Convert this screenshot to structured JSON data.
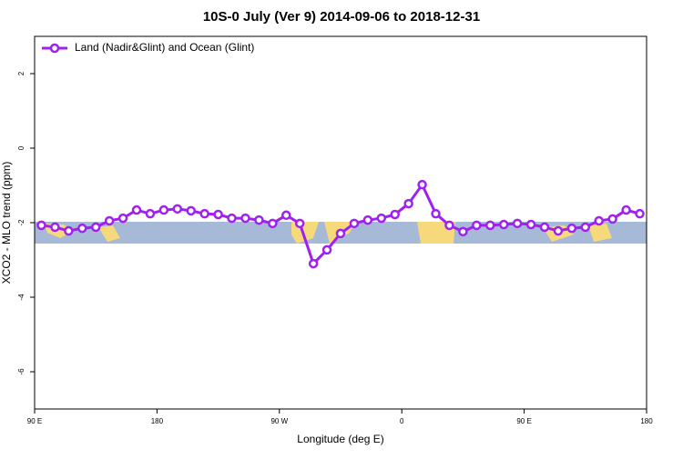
{
  "chart_data": {
    "type": "line",
    "title": "10S-0 July (Ver 9)   2014-09-06 to 2018-12-31",
    "x_label": "Longitude (deg E)",
    "y_label": "XCO2 - MLO trend (ppm)",
    "x": [
      95,
      105,
      115,
      125,
      135,
      145,
      155,
      165,
      175,
      185,
      195,
      205,
      215,
      225,
      235,
      245,
      255,
      265,
      275,
      285,
      295,
      305,
      315,
      325,
      335,
      345,
      355,
      365,
      375,
      385,
      395,
      405,
      415,
      425,
      435,
      445,
      455,
      465,
      475,
      485,
      495,
      505,
      515,
      525,
      535
    ],
    "series": [
      {
        "name": "Land (Nadir&Glint) and Ocean (Glint)",
        "color": "#a020f0",
        "values": [
          -2.07,
          -2.12,
          -2.22,
          -2.15,
          -2.12,
          -1.95,
          -1.88,
          -1.66,
          -1.76,
          -1.66,
          -1.63,
          -1.68,
          -1.76,
          -1.78,
          -1.88,
          -1.88,
          -1.93,
          -2.02,
          -1.8,
          -2.02,
          -3.1,
          -2.73,
          -2.29,
          -2.02,
          -1.93,
          -1.88,
          -1.78,
          -1.49,
          -0.98,
          -1.76,
          -2.07,
          -2.24,
          -2.07,
          -2.07,
          -2.05,
          -2.02,
          -2.05,
          -2.12,
          -2.22,
          -2.15,
          -2.12,
          -1.95,
          -1.9,
          -1.66,
          -1.76
        ]
      }
    ],
    "xlim": [
      90,
      540
    ],
    "xticks": [
      {
        "value": 90,
        "label": "90 E"
      },
      180,
      {
        "value": 270,
        "label": "90 W"
      },
      {
        "value": 360,
        "label": "0"
      },
      {
        "value": 450,
        "label": "90 E"
      },
      {
        "value": 540,
        "label": "180"
      }
    ],
    "ylim": [
      -7,
      3
    ],
    "yticks": [
      -6,
      -4,
      -2,
      0,
      2
    ],
    "legend_position": "top-left"
  }
}
